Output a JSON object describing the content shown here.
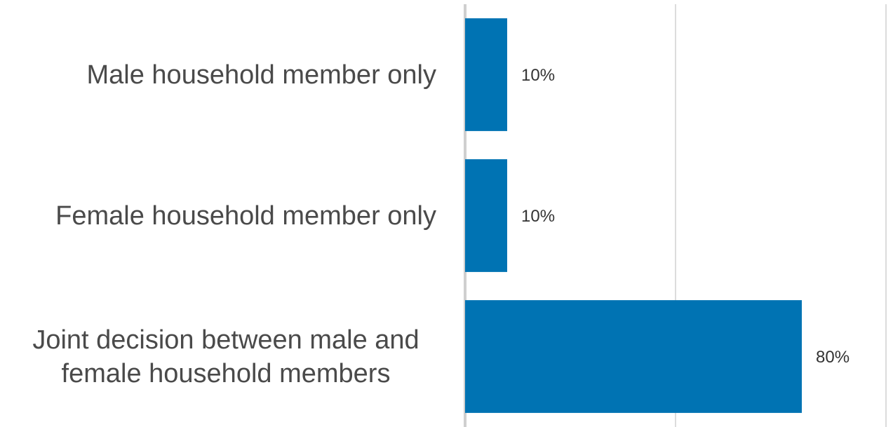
{
  "chart_data": {
    "type": "bar",
    "orientation": "horizontal",
    "categories": [
      "Male household member only",
      "Female household member only",
      "Joint decision between male and female household members"
    ],
    "values": [
      10,
      10,
      80
    ],
    "value_labels": [
      "10%",
      "10%",
      "80%"
    ],
    "color": "#0073b3",
    "xlim": [
      0,
      100
    ],
    "xticks": [
      0,
      50,
      100
    ],
    "grid": true
  }
}
